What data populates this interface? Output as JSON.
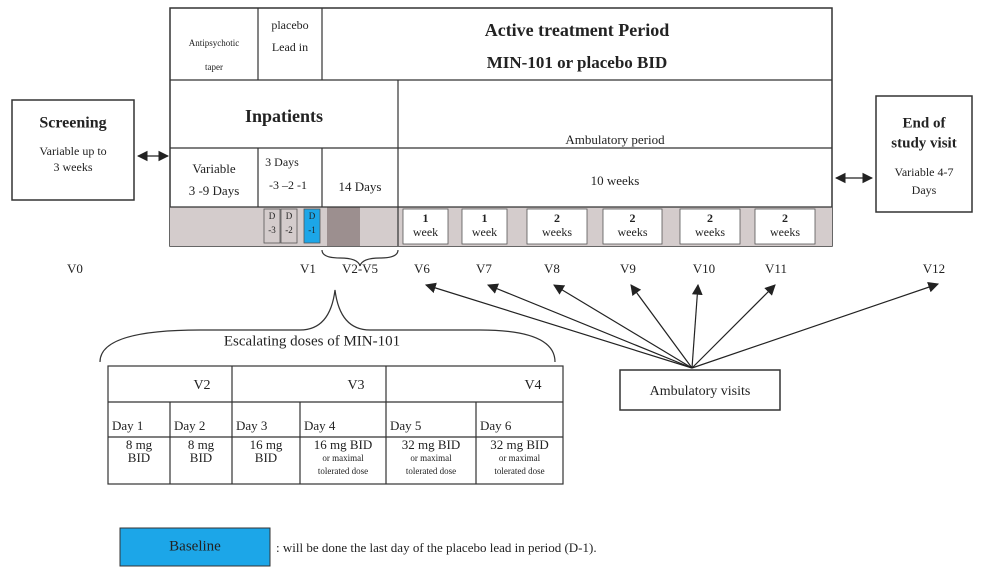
{
  "screening": {
    "title": "Screening",
    "text": [
      "Variable up to",
      "3 weeks"
    ]
  },
  "header": {
    "antipsychotic_taper": [
      "Antipsychotic",
      "taper"
    ],
    "placebo_lead_in": [
      "placebo",
      "Lead in"
    ],
    "active_treatment": [
      "Active treatment Period",
      "MIN-101   or placebo BID"
    ]
  },
  "periods": {
    "inpatients": "Inpatients",
    "ambulatory": "Ambulatory period"
  },
  "durations": {
    "taper": [
      "Variable",
      "3 -9 Days"
    ],
    "lead_in": [
      "3 Days",
      "-3 –2 -1"
    ],
    "escalation": "14 Days",
    "ambulatory": "10 weeks"
  },
  "day_cells": [
    [
      "D",
      "-3"
    ],
    [
      "D",
      "-2"
    ],
    [
      "D",
      "-1"
    ]
  ],
  "week_cells": [
    [
      "1",
      "week"
    ],
    [
      "1",
      "week"
    ],
    [
      "2",
      "weeks"
    ],
    [
      "2",
      "weeks"
    ],
    [
      "2",
      "weeks"
    ],
    [
      "2",
      "weeks"
    ]
  ],
  "visits": [
    "V0",
    "V1",
    "V2-V5",
    "V6",
    "V7",
    "V8",
    "V9",
    "V10",
    "V11",
    "V12"
  ],
  "end_of_study": {
    "title": [
      "End of",
      "study visit"
    ],
    "text": [
      "Variable 4-7",
      "Days"
    ]
  },
  "escalation": {
    "title": "Escalating doses of MIN-101",
    "visits": [
      "V2",
      "V3",
      "V4"
    ],
    "days": [
      "Day 1",
      "Day 2",
      "Day 3",
      "Day 4",
      "Day 5",
      "Day 6"
    ],
    "doses": [
      [
        "8 mg",
        "BID"
      ],
      [
        "8 mg",
        "BID"
      ],
      [
        "16 mg",
        "BID"
      ],
      [
        "16 mg BID",
        "or maximal",
        "tolerated dose"
      ],
      [
        "32 mg BID",
        "or maximal",
        "tolerated dose"
      ],
      [
        "32 mg BID",
        "or maximal",
        "tolerated dose"
      ]
    ]
  },
  "ambulatory_visits": "Ambulatory visits",
  "legend": {
    "label": "Baseline",
    "text": ": will be done the last day of the placebo lead in period (D-1)."
  }
}
